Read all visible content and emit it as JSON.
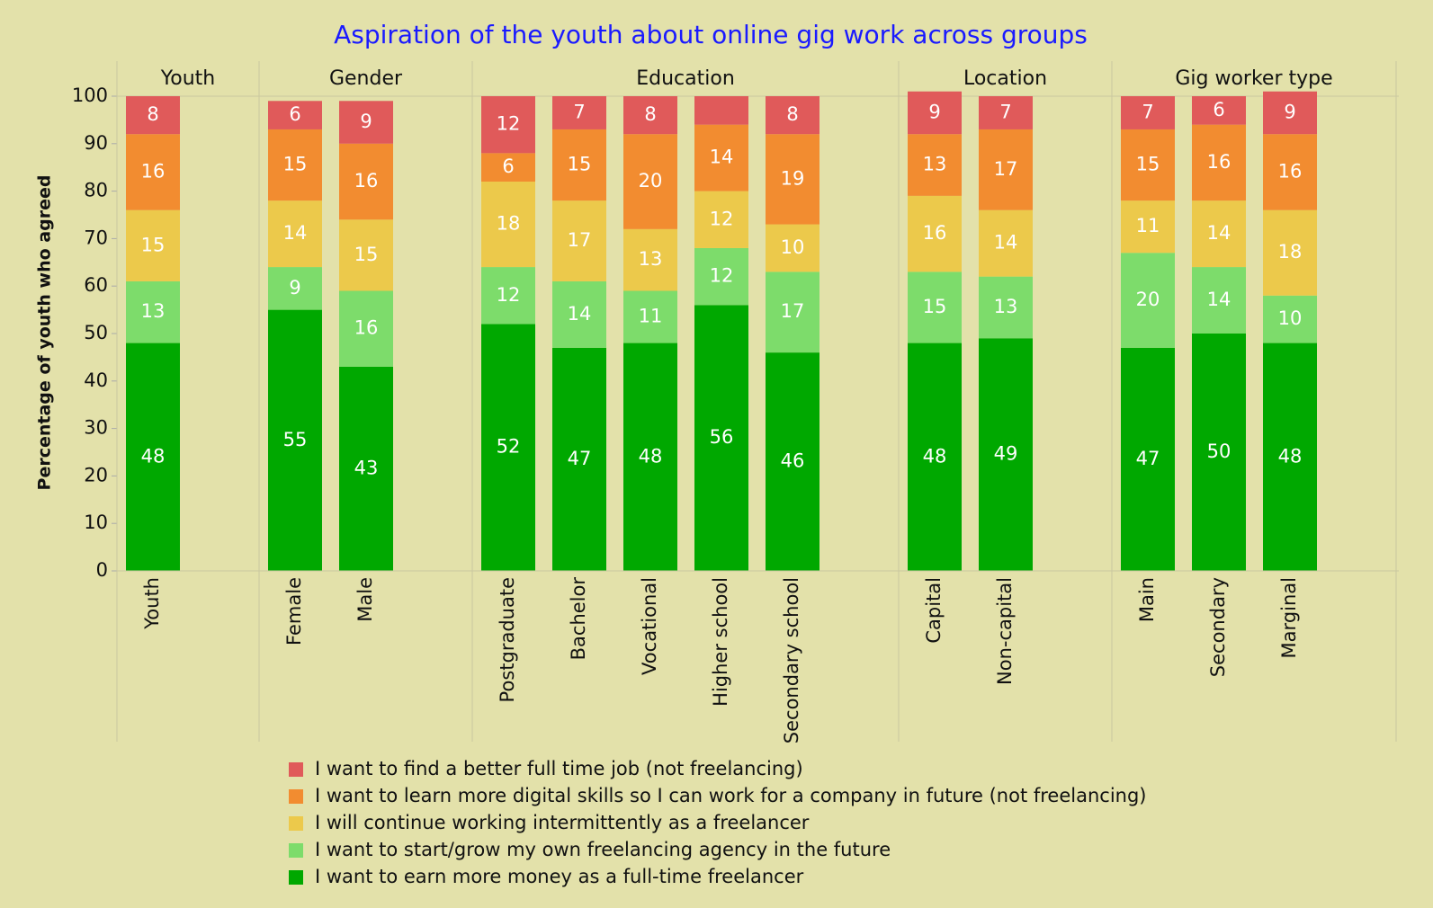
{
  "chart_data": {
    "type": "stacked_bar",
    "title": "Aspiration of the youth about online gig work across  groups",
    "y_label": "Percentage of youth who agreed",
    "groups": [
      {
        "name": "Youth",
        "categories": [
          "Youth"
        ]
      },
      {
        "name": "Gender",
        "categories": [
          "Female",
          "Male"
        ]
      },
      {
        "name": "Education",
        "categories": [
          "Postgraduate",
          "Bachelor",
          "Vocational",
          "Higher school",
          "Secondary school"
        ]
      },
      {
        "name": "Location",
        "categories": [
          "Capital",
          "Non-capital"
        ]
      },
      {
        "name": "Gig worker type",
        "categories": [
          "Main",
          "Secondary",
          "Marginal"
        ]
      }
    ],
    "series": [
      {
        "name": "I want to earn more money as a full-time freelancer",
        "color": "#00a800",
        "values": [
          48,
          55,
          43,
          52,
          47,
          48,
          56,
          46,
          48,
          49,
          47,
          50,
          48
        ]
      },
      {
        "name": "I want to start/grow my own freelancing agency  in the future",
        "color": "#7ddc6b",
        "values": [
          13,
          9,
          16,
          12,
          14,
          11,
          12,
          17,
          15,
          13,
          20,
          14,
          10
        ]
      },
      {
        "name": "I will continue working intermittently as a freelancer",
        "color": "#ecc94b",
        "values": [
          15,
          14,
          15,
          18,
          17,
          13,
          12,
          10,
          16,
          14,
          11,
          14,
          18
        ]
      },
      {
        "name": "I want to learn more digital skills so I can work for a company in future (not freelancing)",
        "color": "#f28c30",
        "values": [
          16,
          15,
          16,
          6,
          15,
          20,
          14,
          19,
          13,
          17,
          15,
          16,
          16
        ]
      },
      {
        "name": "I want to find a better full time job (not freelancing)",
        "color": "#e05a5a",
        "values": [
          8,
          6,
          9,
          12,
          7,
          8,
          6,
          8,
          9,
          7,
          7,
          6,
          9
        ],
        "value_labels": [
          "8",
          "6",
          "9",
          "12",
          "7",
          "8",
          null,
          "8",
          "9",
          "7",
          "7",
          "6",
          "9"
        ]
      }
    ],
    "ylim": [
      0,
      100
    ],
    "yticks": [
      0,
      10,
      20,
      30,
      40,
      50,
      60,
      70,
      80,
      90,
      100
    ]
  }
}
